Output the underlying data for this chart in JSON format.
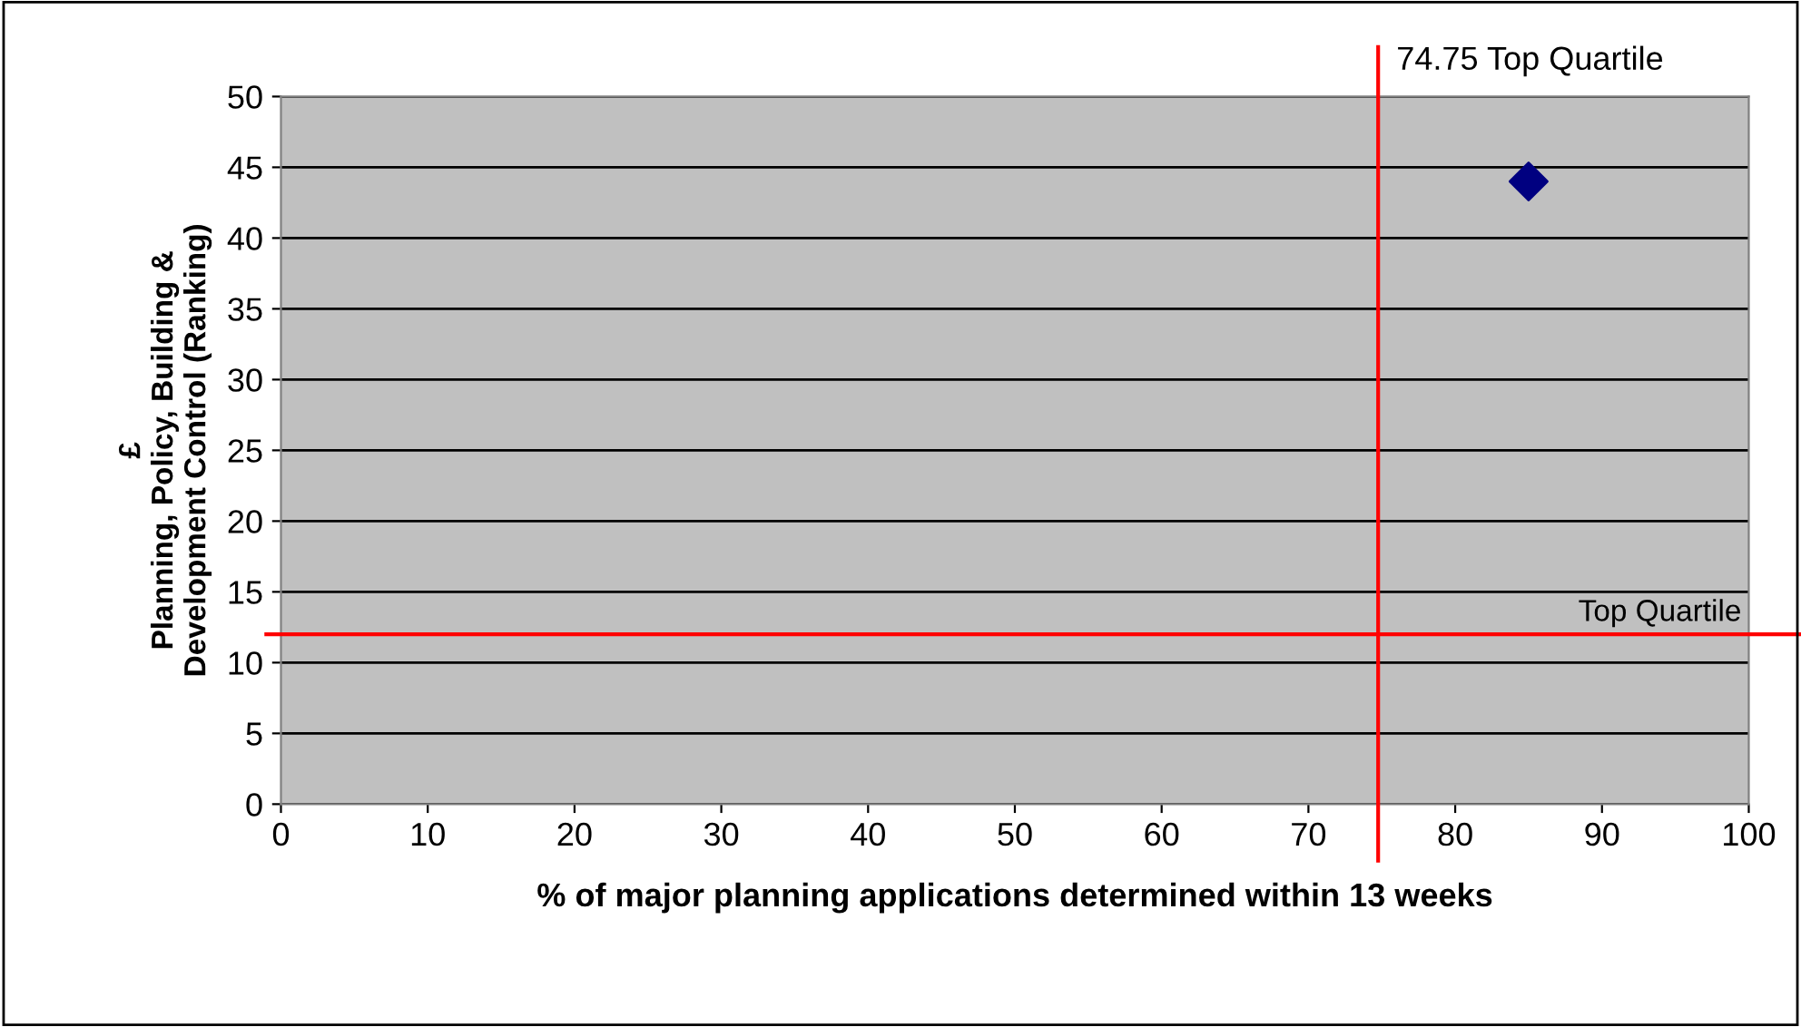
{
  "chart_data": {
    "type": "scatter",
    "xlabel": "% of major planning applications determined within 13 weeks",
    "ylabel": "£\nPlanning, Policy, Building &\nDevelopment Control (Ranking)",
    "x": [
      85
    ],
    "series": [
      {
        "color": "#000080",
        "values": [
          44
        ]
      }
    ],
    "marker": "diamond",
    "xlim": [
      0,
      100
    ],
    "xticks": [
      0,
      10,
      20,
      30,
      40,
      50,
      60,
      70,
      80,
      90,
      100
    ],
    "ylim": [
      0,
      50
    ],
    "yticks": [
      0,
      5,
      10,
      15,
      20,
      25,
      30,
      35,
      40,
      45,
      50
    ],
    "grid": "y",
    "legend": false,
    "ref_lines": [
      {
        "axis": "x",
        "value": 74.75,
        "label": "74.75 Top Quartile",
        "color": "#ff0000"
      },
      {
        "axis": "y",
        "value": 12,
        "label": "Top Quartile",
        "color": "#ff0000"
      }
    ]
  }
}
